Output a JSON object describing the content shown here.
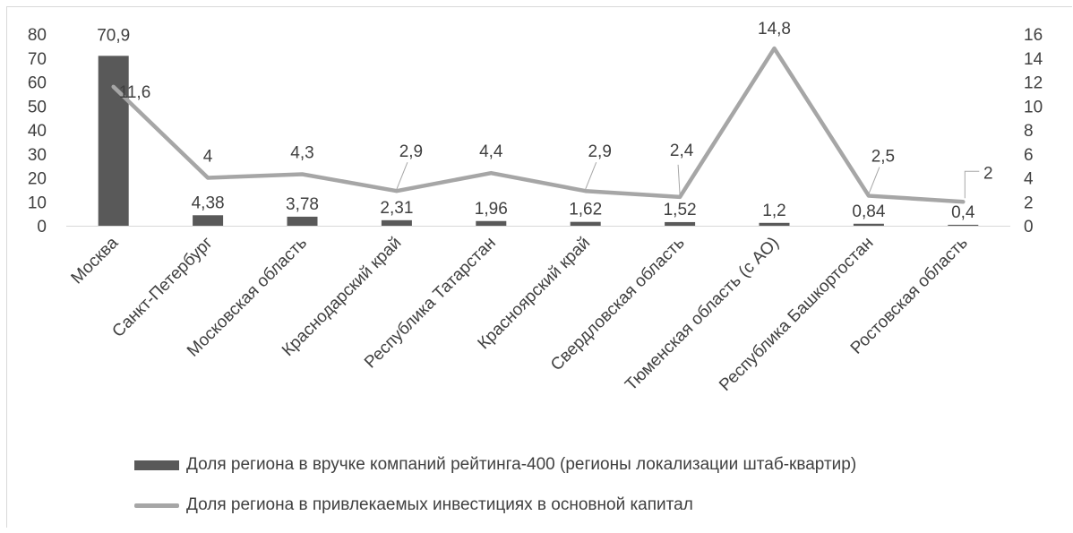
{
  "chart_data": {
    "type": "bar+line",
    "categories": [
      "Москва",
      "Санкт-Петербург",
      "Московская область",
      "Краснодарский край",
      "Республика Татарстан",
      "Красноярский край",
      "Свердловская область",
      "Тюменская область (с АО)",
      "Республика Башкортостан",
      "Ростовская область"
    ],
    "series": [
      {
        "name": "Доля региона в вручке компаний рейтинга-400 (регионы локализации штаб-квартир)",
        "type": "bar",
        "axis": "left",
        "color": "#595959",
        "values": [
          70.9,
          4.38,
          3.78,
          2.31,
          1.96,
          1.62,
          1.52,
          1.2,
          0.84,
          0.4
        ],
        "labels": [
          "70,9",
          "4,38",
          "3,78",
          "2,31",
          "1,96",
          "1,62",
          "1,52",
          "1,2",
          "0,84",
          "0,4"
        ]
      },
      {
        "name": "Доля региона в привлекаемых инвестициях в основной капитал",
        "type": "line",
        "axis": "right",
        "color": "#a6a6a6",
        "values": [
          11.6,
          4,
          4.3,
          2.9,
          4.4,
          2.9,
          2.4,
          14.8,
          2.5,
          2
        ],
        "labels": [
          "11,6",
          "4",
          "4,3",
          "2,9",
          "4,4",
          "2,9",
          "2,4",
          "14,8",
          "2,5",
          "2"
        ]
      }
    ],
    "y_left": {
      "min": 0,
      "max": 80,
      "step": 10,
      "ticks": [
        "0",
        "10",
        "20",
        "30",
        "40",
        "50",
        "60",
        "70",
        "80"
      ]
    },
    "y_right": {
      "min": 0,
      "max": 16,
      "step": 2,
      "ticks": [
        "0",
        "2",
        "4",
        "6",
        "8",
        "10",
        "12",
        "14",
        "16"
      ]
    },
    "title": "",
    "grid": false,
    "legend_position": "bottom",
    "text_color": "#404040"
  }
}
